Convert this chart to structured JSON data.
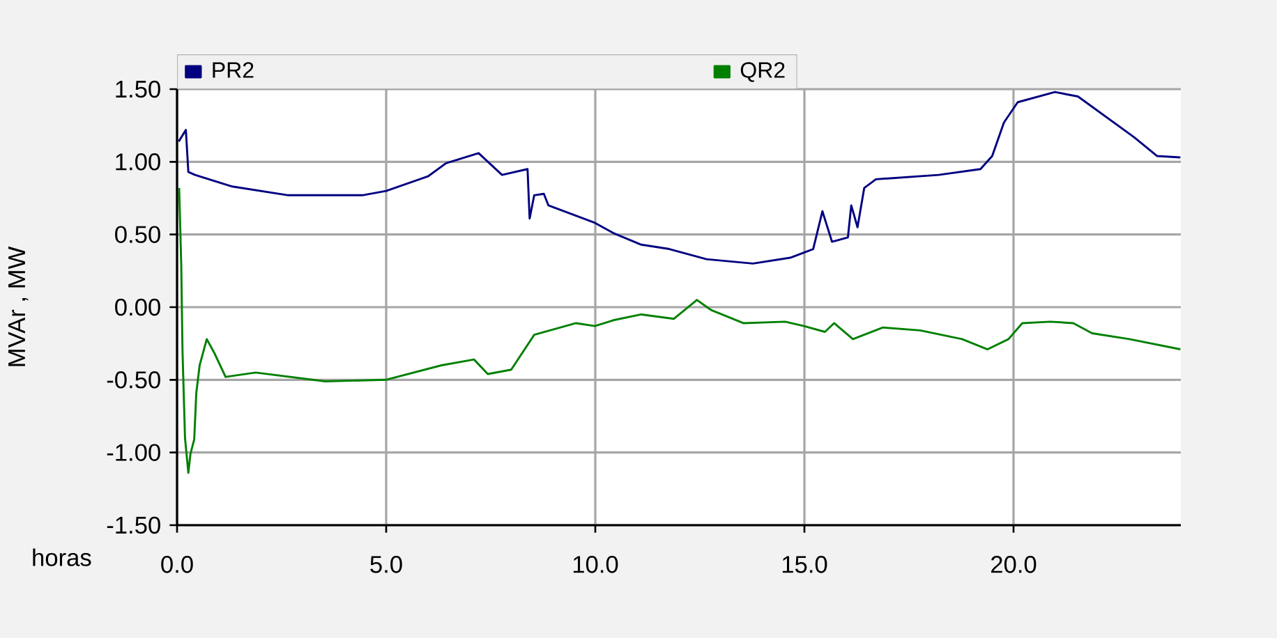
{
  "chart_data": {
    "type": "line",
    "xlabel": "horas",
    "ylabel": "MVAr , MW",
    "xlim": [
      0,
      24
    ],
    "ylim": [
      -1.5,
      1.5
    ],
    "xticks": [
      {
        "value": 0,
        "label": "0.0"
      },
      {
        "value": 5,
        "label": "5.0"
      },
      {
        "value": 10,
        "label": "10.0"
      },
      {
        "value": 15,
        "label": "15.0"
      },
      {
        "value": 20,
        "label": "20.0"
      }
    ],
    "yticks": [
      {
        "value": -1.5,
        "label": "-1.50"
      },
      {
        "value": -1,
        "label": "-1.00"
      },
      {
        "value": -0.5,
        "label": "-0.50"
      },
      {
        "value": 0,
        "label": "0.00"
      },
      {
        "value": 0.5,
        "label": "0.50"
      },
      {
        "value": 1,
        "label": "1.00"
      },
      {
        "value": 1.5,
        "label": "1.50"
      }
    ],
    "grid": true,
    "legend": "top",
    "line_style": "solid",
    "series": [
      {
        "name": "PR2",
        "color": "#000080",
        "x": [
          0.04,
          0.21,
          0.27,
          0.43,
          1.32,
          2.66,
          4.43,
          5.0,
          6.0,
          6.43,
          7.21,
          7.77,
          8.38,
          8.43,
          8.54,
          8.77,
          8.88,
          9.99,
          10.43,
          11.1,
          11.77,
          12.66,
          13.77,
          14.66,
          15.21,
          15.43,
          15.66,
          16.04,
          16.12,
          16.27,
          16.43,
          16.71,
          18.21,
          19.21,
          19.49,
          19.77,
          20.1,
          20.99,
          21.54,
          22.21,
          22.88,
          23.43,
          23.99
        ],
        "values": [
          1.14,
          1.22,
          0.93,
          0.91,
          0.83,
          0.77,
          0.77,
          0.8,
          0.9,
          0.99,
          1.06,
          0.91,
          0.95,
          0.61,
          0.77,
          0.78,
          0.7,
          0.58,
          0.51,
          0.43,
          0.4,
          0.33,
          0.3,
          0.34,
          0.4,
          0.66,
          0.45,
          0.48,
          0.7,
          0.55,
          0.82,
          0.88,
          0.91,
          0.95,
          1.04,
          1.27,
          1.41,
          1.48,
          1.45,
          1.31,
          1.17,
          1.04,
          1.03
        ]
      },
      {
        "name": "QR2",
        "color": "#008000",
        "x": [
          0.05,
          0.1,
          0.13,
          0.19,
          0.27,
          0.32,
          0.41,
          0.46,
          0.54,
          0.71,
          0.9,
          1.16,
          1.88,
          3.54,
          4.99,
          6.32,
          7.1,
          7.43,
          7.99,
          8.54,
          9.54,
          9.99,
          10.43,
          11.1,
          11.88,
          12.43,
          12.77,
          13.54,
          14.54,
          14.99,
          15.49,
          15.71,
          16.16,
          16.88,
          17.77,
          18.77,
          19.38,
          19.88,
          20.21,
          20.88,
          21.43,
          21.88,
          22.77,
          23.99
        ],
        "values": [
          0.82,
          0.29,
          -0.3,
          -0.9,
          -1.14,
          -1.01,
          -0.91,
          -0.59,
          -0.4,
          -0.22,
          -0.32,
          -0.48,
          -0.45,
          -0.51,
          -0.5,
          -0.4,
          -0.36,
          -0.46,
          -0.43,
          -0.19,
          -0.11,
          -0.13,
          -0.09,
          -0.05,
          -0.08,
          0.05,
          -0.02,
          -0.11,
          -0.1,
          -0.13,
          -0.17,
          -0.11,
          -0.22,
          -0.14,
          -0.16,
          -0.22,
          -0.29,
          -0.22,
          -0.11,
          -0.1,
          -0.11,
          -0.18,
          -0.22,
          -0.29
        ]
      }
    ]
  }
}
